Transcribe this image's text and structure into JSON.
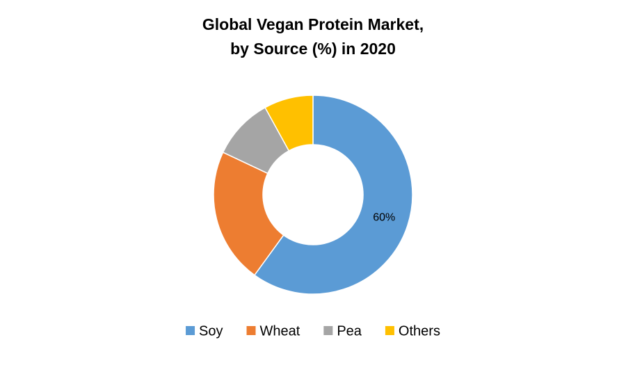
{
  "chart_data": {
    "type": "donut",
    "title": [
      "Global Vegan Protein Market,",
      "by Source (%) in 2020"
    ],
    "categories": [
      "Soy",
      "Wheat",
      "Pea",
      "Others"
    ],
    "values": [
      60,
      22,
      10,
      8
    ],
    "value_labels": [
      "60%",
      null,
      null,
      null
    ],
    "colors": [
      "#5b9bd5",
      "#ed7d31",
      "#a5a5a5",
      "#ffc000"
    ],
    "legend": "bottom"
  }
}
